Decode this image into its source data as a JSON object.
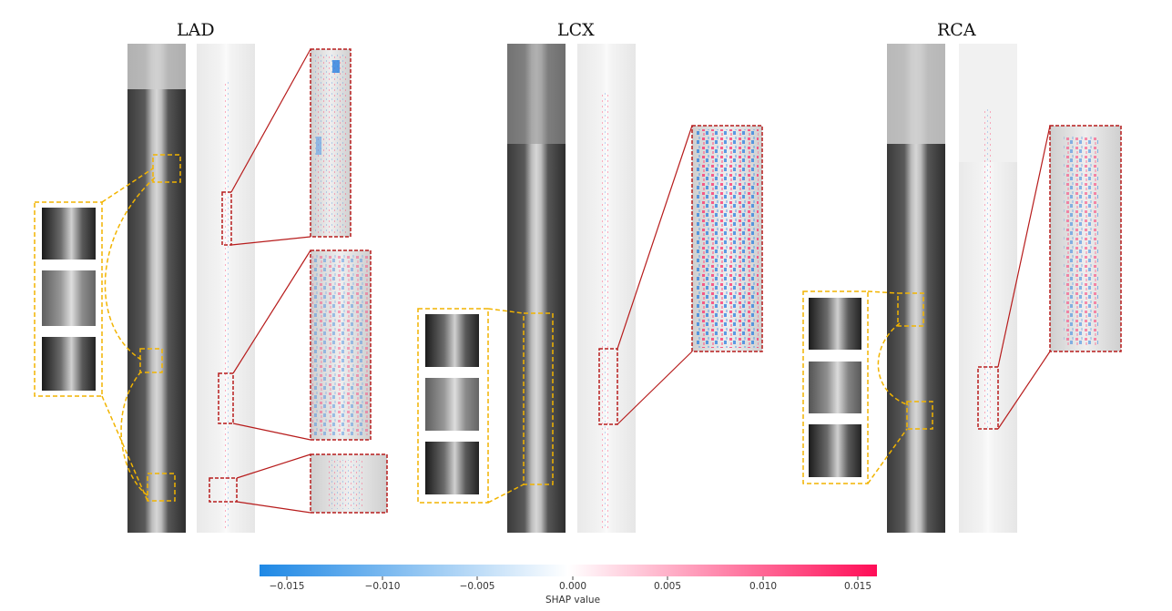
{
  "panels": [
    {
      "id": "lad",
      "title": "LAD"
    },
    {
      "id": "lcx",
      "title": "LCX"
    },
    {
      "id": "rca",
      "title": "RCA"
    }
  ],
  "colorbar": {
    "label": "SHAP value",
    "ticks": [
      "−0.015",
      "−0.010",
      "−0.005",
      "0.000",
      "0.005",
      "0.010",
      "0.015"
    ],
    "low_color": "#1e88e5",
    "mid_color": "#ffffff",
    "high_color": "#ff0d57"
  },
  "colors": {
    "highlight_yellow": "#f2b400",
    "highlight_red": "#b71c1c"
  }
}
